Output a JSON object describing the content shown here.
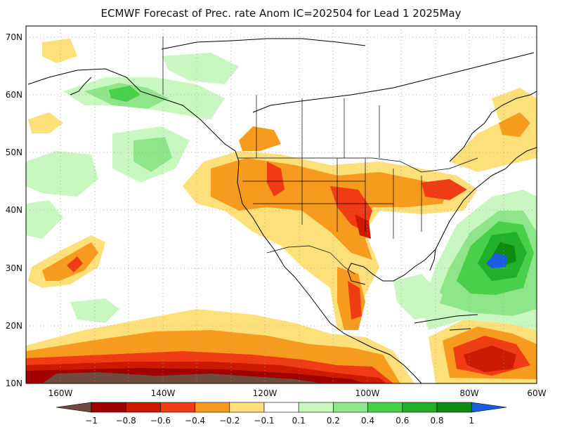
{
  "title": "ECMWF Forecast of Prec. rate Anom IC=202504 for Lead 1 2025May",
  "lat_labels": [
    "70N",
    "60N",
    "50N",
    "40N",
    "30N",
    "20N",
    "10N"
  ],
  "lon_labels": [
    "160W",
    "140W",
    "120W",
    "100W",
    "80W",
    "60W"
  ],
  "colorbar": {
    "labels": [
      "−1",
      "−0.8",
      "−0.6",
      "−0.4",
      "−0.2",
      "−0.1",
      "0.1",
      "0.2",
      "0.4",
      "0.6",
      "0.8",
      "1"
    ],
    "colors": [
      "#704b3e",
      "#a00000",
      "#cc1a00",
      "#f03c14",
      "#f79b1e",
      "#fde07a",
      "#ffffff",
      "#c8f8c0",
      "#8fe58a",
      "#48d04a",
      "#22b02a",
      "#0e8c12",
      "#1a5ee0"
    ]
  },
  "colors": {
    "brown": "#704b3e",
    "darkred": "#a00000",
    "red": "#cc1a00",
    "orangered": "#f03c14",
    "orange": "#f79b1e",
    "yellow": "#fde07a",
    "lightgreen": "#c8f8c0",
    "green2": "#8fe58a",
    "green3": "#48d04a",
    "green4": "#22b02a",
    "darkgreen": "#0e8c12",
    "blue": "#1a5ee0"
  }
}
